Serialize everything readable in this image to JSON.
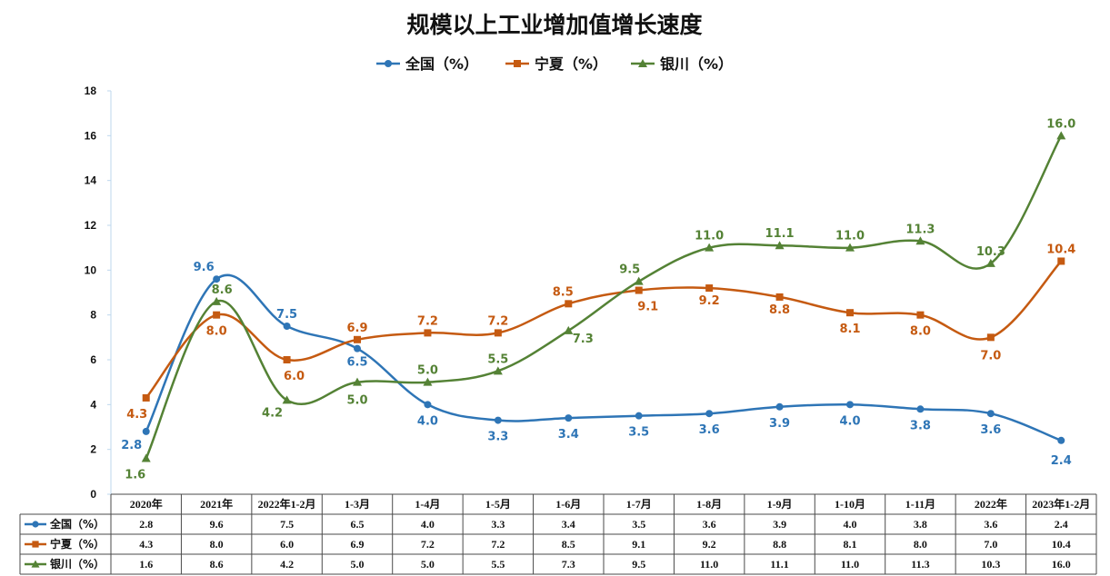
{
  "chart_data": {
    "type": "line",
    "title": "规模以上工业增加值增长速度",
    "xlabel": "",
    "ylabel": "",
    "ylim": [
      0,
      18
    ],
    "yticks": [
      0,
      2,
      4,
      6,
      8,
      10,
      12,
      14,
      16,
      18
    ],
    "categories": [
      "2020年",
      "2021年",
      "2022年1-2月",
      "1-3月",
      "1-4月",
      "1-5月",
      "1-6月",
      "1-7月",
      "1-8月",
      "1-9月",
      "1-10月",
      "1-11月",
      "2022年",
      "2023年1-2月"
    ],
    "legend_position": "top-center",
    "data_table": true,
    "series": [
      {
        "name": "全国（%）",
        "color": "#2E75B6",
        "marker": "circle",
        "values": [
          2.8,
          9.6,
          7.5,
          6.5,
          4.0,
          3.3,
          3.4,
          3.5,
          3.6,
          3.9,
          4.0,
          3.8,
          3.6,
          2.4
        ],
        "labels": [
          "2.8",
          "9.6",
          "7.5",
          "6.5",
          "4.0",
          "3.3",
          "3.4",
          "3.5",
          "3.6",
          "3.9",
          "4.0",
          "3.8",
          "3.6",
          "2.4"
        ]
      },
      {
        "name": "宁夏（%）",
        "color": "#C55A11",
        "marker": "square",
        "values": [
          4.3,
          8.0,
          6.0,
          6.9,
          7.2,
          7.2,
          8.5,
          9.1,
          9.2,
          8.8,
          8.1,
          8.0,
          7.0,
          10.4
        ],
        "labels": [
          "4.3",
          "8.0",
          "6.0",
          "6.9",
          "7.2",
          "7.2",
          "8.5",
          "9.1",
          "9.2",
          "8.8",
          "8.1",
          "8.0",
          "7.0",
          "10.4"
        ]
      },
      {
        "name": "银川（%）",
        "color": "#548235",
        "marker": "triangle",
        "values": [
          1.6,
          8.6,
          4.2,
          5.0,
          5.0,
          5.5,
          7.3,
          9.5,
          11.0,
          11.1,
          11.0,
          11.3,
          10.3,
          16.0
        ],
        "labels": [
          "1.6",
          "8.6",
          "4.2",
          "5.0",
          "5.0",
          "5.5",
          "7.3",
          "9.5",
          "11.0",
          "11.1",
          "11.0",
          "11.3",
          "10.3",
          "16.0"
        ]
      }
    ]
  }
}
